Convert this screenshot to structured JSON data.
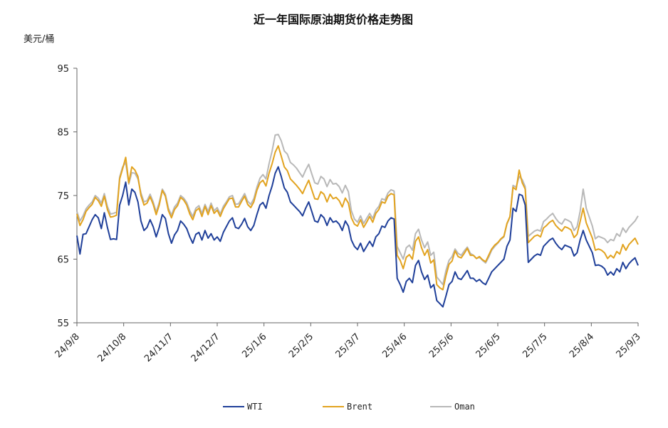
{
  "chart_data": {
    "type": "line",
    "title": "近一年国际原油期货价格走势图",
    "ylabel": "美元/桶",
    "xlabel": "",
    "ylim": [
      55,
      95
    ],
    "yticks": [
      "95",
      "85",
      "75",
      "65",
      "55"
    ],
    "xticks": [
      "24/9/8",
      "24/10/8",
      "24/11/7",
      "24/12/7",
      "25/1/6",
      "25/2/5",
      "25/3/7",
      "25/4/6",
      "25/5/6",
      "25/6/5",
      "25/7/5",
      "25/8/4",
      "25/9/3"
    ],
    "legend_position": "bottom",
    "grid": false,
    "series": [
      {
        "name": "WTI",
        "color": "#1f3f99",
        "values": [
          68.7,
          65.8,
          68.9,
          69.0,
          70.1,
          71.2,
          72.0,
          71.5,
          69.8,
          72.3,
          70.0,
          68.1,
          68.2,
          68.1,
          73.5,
          75.0,
          77.1,
          73.5,
          76.0,
          75.5,
          74.0,
          71.0,
          69.5,
          70.0,
          71.2,
          70.1,
          68.5,
          70.0,
          72.0,
          71.4,
          69.0,
          67.5,
          68.8,
          69.5,
          71.0,
          70.5,
          69.8,
          68.5,
          67.5,
          68.9,
          69.2,
          68.0,
          69.5,
          68.3,
          69.0,
          68.0,
          68.5,
          67.8,
          69.2,
          70.1,
          71.0,
          71.5,
          70.0,
          69.8,
          70.5,
          71.4,
          70.1,
          69.5,
          70.3,
          72.0,
          73.5,
          73.9,
          73.0,
          75.0,
          76.5,
          78.5,
          79.5,
          78.0,
          76.2,
          75.5,
          74.0,
          73.5,
          73.0,
          72.5,
          71.8,
          73.0,
          74.0,
          72.5,
          71.0,
          70.8,
          72.0,
          71.5,
          70.3,
          71.5,
          70.8,
          71.0,
          70.5,
          69.5,
          71.0,
          70.2,
          68.0,
          67.0,
          66.5,
          67.5,
          66.2,
          67.0,
          67.8,
          67.0,
          68.5,
          69.0,
          70.2,
          70.0,
          71.0,
          71.5,
          71.3,
          62.0,
          61.0,
          59.8,
          61.5,
          62.0,
          61.3,
          64.0,
          64.8,
          63.0,
          61.8,
          62.5,
          60.5,
          61.0,
          58.5,
          58.0,
          57.5,
          59.2,
          61.0,
          61.5,
          63.0,
          62.0,
          61.8,
          62.5,
          63.2,
          62.0,
          62.0,
          61.5,
          61.8,
          61.3,
          61.0,
          62.0,
          63.0,
          63.5,
          64.0,
          64.5,
          65.0,
          67.0,
          68.0,
          73.0,
          72.5,
          75.2,
          75.0,
          73.5,
          64.5,
          65.0,
          65.5,
          65.8,
          65.6,
          67.0,
          67.5,
          68.0,
          68.3,
          67.5,
          66.9,
          66.5,
          67.2,
          67.0,
          66.8,
          65.5,
          66.0,
          68.0,
          69.5,
          68.0,
          67.0,
          66.0,
          64.0,
          64.1,
          63.9,
          63.5,
          62.5,
          63.0,
          62.5,
          63.5,
          63.0,
          64.5,
          63.5,
          64.3,
          64.8,
          65.2,
          64.0
        ]
      },
      {
        "name": "Brent",
        "color": "#e2a31f",
        "values": [
          72.1,
          70.3,
          71.2,
          72.5,
          73.1,
          73.6,
          74.7,
          74.2,
          73.3,
          74.9,
          72.8,
          71.6,
          71.7,
          71.9,
          77.6,
          79.2,
          81.0,
          77.0,
          79.5,
          79.0,
          78.0,
          75.0,
          73.5,
          73.8,
          74.8,
          73.6,
          72.0,
          73.5,
          75.8,
          74.9,
          72.6,
          71.5,
          72.8,
          73.4,
          74.7,
          74.3,
          73.5,
          72.1,
          71.2,
          72.6,
          73.0,
          71.7,
          73.3,
          72.0,
          73.4,
          72.2,
          72.7,
          71.7,
          72.9,
          73.7,
          74.5,
          74.6,
          73.2,
          73.2,
          74.1,
          74.9,
          73.6,
          73.1,
          74.0,
          75.8,
          77.0,
          77.4,
          76.5,
          78.5,
          80.0,
          81.8,
          82.8,
          81.2,
          79.5,
          78.9,
          77.6,
          77.1,
          76.6,
          76.0,
          75.3,
          76.4,
          77.4,
          75.9,
          74.5,
          74.4,
          75.6,
          75.2,
          74.0,
          75.2,
          74.5,
          74.7,
          74.2,
          73.2,
          74.6,
          73.8,
          71.5,
          70.5,
          70.2,
          71.2,
          70.0,
          70.8,
          71.7,
          70.8,
          72.2,
          72.8,
          74.0,
          73.8,
          74.9,
          75.3,
          75.1,
          65.6,
          64.8,
          63.5,
          65.3,
          65.7,
          65.0,
          67.8,
          68.5,
          66.8,
          65.6,
          66.5,
          64.4,
          64.9,
          61.0,
          60.5,
          60.2,
          62.4,
          64.2,
          64.7,
          66.3,
          65.4,
          65.2,
          65.9,
          66.7,
          65.6,
          65.6,
          65.1,
          65.4,
          64.9,
          64.6,
          65.6,
          66.6,
          67.2,
          67.6,
          68.2,
          68.6,
          70.6,
          71.7,
          76.3,
          75.9,
          79.0,
          77.0,
          76.0,
          67.6,
          68.1,
          68.6,
          68.8,
          68.5,
          69.9,
          70.3,
          70.8,
          71.1,
          70.3,
          69.8,
          69.4,
          70.1,
          69.9,
          69.6,
          68.4,
          68.9,
          70.9,
          73.0,
          70.7,
          69.5,
          68.3,
          66.4,
          66.6,
          66.4,
          66.0,
          65.1,
          65.6,
          65.2,
          66.2,
          65.8,
          67.3,
          66.4,
          67.3,
          67.8,
          68.3,
          67.3
        ]
      },
      {
        "name": "Oman",
        "color": "#b8b8b8",
        "values": [
          72.5,
          71.0,
          71.8,
          72.9,
          73.5,
          74.0,
          75.0,
          74.6,
          73.8,
          75.3,
          73.3,
          72.1,
          72.2,
          72.4,
          77.9,
          79.5,
          80.2,
          76.8,
          78.6,
          78.5,
          77.6,
          75.4,
          74.0,
          74.2,
          75.2,
          74.0,
          72.4,
          73.9,
          76.0,
          75.2,
          73.0,
          71.9,
          73.2,
          73.8,
          75.0,
          74.6,
          73.9,
          72.6,
          71.7,
          73.0,
          73.4,
          72.2,
          73.6,
          72.5,
          73.8,
          72.6,
          73.1,
          72.1,
          73.3,
          74.0,
          74.8,
          75.0,
          73.6,
          73.7,
          74.5,
          75.3,
          74.1,
          73.6,
          74.5,
          76.3,
          77.7,
          78.3,
          77.6,
          80.0,
          82.0,
          84.5,
          84.6,
          83.6,
          82.0,
          81.5,
          80.2,
          79.8,
          79.3,
          78.6,
          77.9,
          79.0,
          79.9,
          78.4,
          77.0,
          76.8,
          78.0,
          77.6,
          76.4,
          77.5,
          76.8,
          76.9,
          76.4,
          75.4,
          76.6,
          75.6,
          72.6,
          71.3,
          70.8,
          71.8,
          70.6,
          71.4,
          72.2,
          71.4,
          72.7,
          73.3,
          74.5,
          74.3,
          75.4,
          75.9,
          75.7,
          67.0,
          66.0,
          65.0,
          66.8,
          67.2,
          66.4,
          69.0,
          69.7,
          68.0,
          66.8,
          67.7,
          65.6,
          66.1,
          62.2,
          61.6,
          61.0,
          63.2,
          64.8,
          65.4,
          66.6,
          65.9,
          65.6,
          66.3,
          66.9,
          65.9,
          65.6,
          65.1,
          65.3,
          64.8,
          64.4,
          65.3,
          66.4,
          67.0,
          67.5,
          68.1,
          68.5,
          70.5,
          71.6,
          76.6,
          76.3,
          78.0,
          77.5,
          76.4,
          68.6,
          69.0,
          69.4,
          69.6,
          69.4,
          70.9,
          71.3,
          71.8,
          72.2,
          71.4,
          70.8,
          70.5,
          71.3,
          71.1,
          70.8,
          69.5,
          70.1,
          72.5,
          76.0,
          73.0,
          71.6,
          70.2,
          68.2,
          68.6,
          68.4,
          68.2,
          67.6,
          68.1,
          67.9,
          69.0,
          68.6,
          69.9,
          69.2,
          70.0,
          70.5,
          71.0,
          71.8
        ]
      }
    ]
  }
}
